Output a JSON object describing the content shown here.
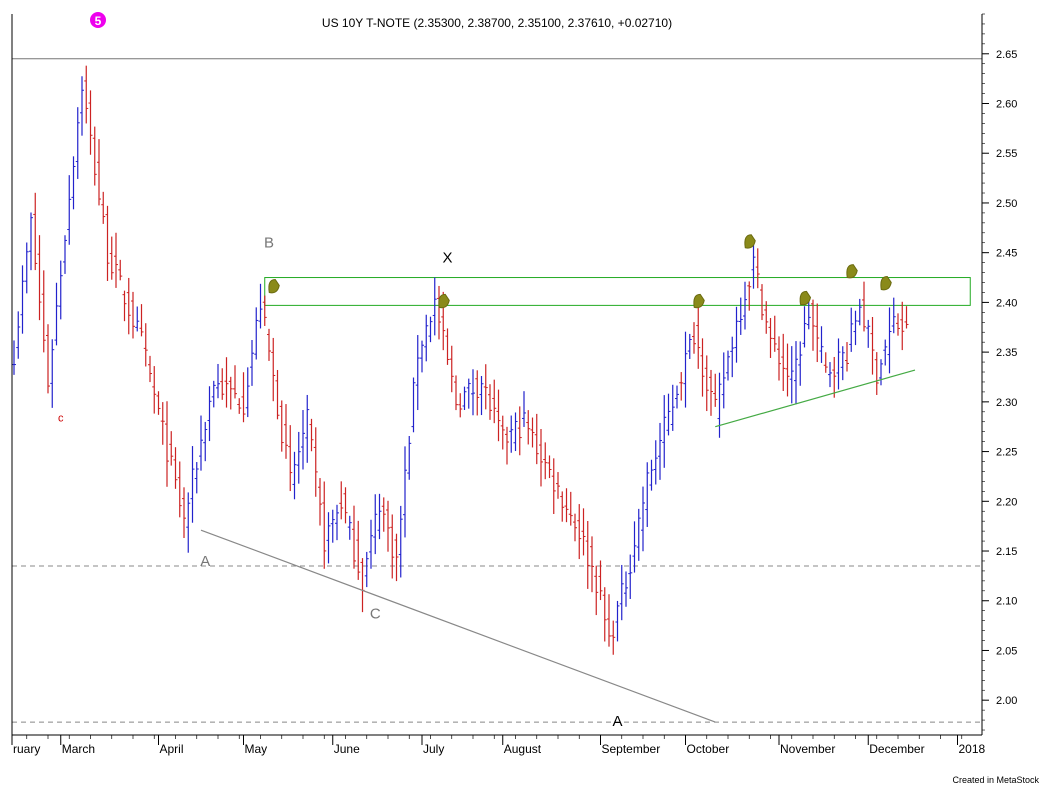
{
  "chart_data": {
    "type": "ohlc",
    "title": "US 10Y T-NOTE (2.35300, 2.38700, 2.35100, 2.37610, +0.02710)",
    "badge": "5",
    "ylim": [
      1.965,
      2.69
    ],
    "y_ticks": [
      2.0,
      2.05,
      2.1,
      2.15,
      2.2,
      2.25,
      2.3,
      2.35,
      2.4,
      2.45,
      2.5,
      2.55,
      2.6,
      2.65
    ],
    "x_labels": [
      {
        "label": "ruary",
        "t": -9
      },
      {
        "label": "March",
        "t": 11
      },
      {
        "label": "April",
        "t": 34
      },
      {
        "label": "May",
        "t": 54
      },
      {
        "label": "June",
        "t": 75
      },
      {
        "label": "July",
        "t": 96
      },
      {
        "label": "August",
        "t": 115
      },
      {
        "label": "September",
        "t": 138
      },
      {
        "label": "October",
        "t": 158
      },
      {
        "label": "November",
        "t": 180
      },
      {
        "label": "December",
        "t": 201
      },
      {
        "label": "2018",
        "t": 222
      }
    ],
    "anchors": [
      {
        "t": 0,
        "price": 2.35
      },
      {
        "t": 4,
        "price": 2.48
      },
      {
        "t": 8,
        "price": 2.32
      },
      {
        "t": 16,
        "price": 2.62
      },
      {
        "t": 22,
        "price": 2.45
      },
      {
        "t": 30,
        "price": 2.36
      },
      {
        "t": 40,
        "price": 2.18
      },
      {
        "t": 47,
        "price": 2.32
      },
      {
        "t": 54,
        "price": 2.3
      },
      {
        "t": 58,
        "price": 2.4
      },
      {
        "t": 65,
        "price": 2.22
      },
      {
        "t": 69,
        "price": 2.28
      },
      {
        "t": 73,
        "price": 2.16
      },
      {
        "t": 77,
        "price": 2.2
      },
      {
        "t": 82,
        "price": 2.12
      },
      {
        "t": 86,
        "price": 2.2
      },
      {
        "t": 90,
        "price": 2.14
      },
      {
        "t": 95,
        "price": 2.35
      },
      {
        "t": 99,
        "price": 2.4
      },
      {
        "t": 104,
        "price": 2.3
      },
      {
        "t": 110,
        "price": 2.32
      },
      {
        "t": 115,
        "price": 2.26
      },
      {
        "t": 120,
        "price": 2.28
      },
      {
        "t": 127,
        "price": 2.22
      },
      {
        "t": 133,
        "price": 2.17
      },
      {
        "t": 137,
        "price": 2.12
      },
      {
        "t": 140,
        "price": 2.06
      },
      {
        "t": 144,
        "price": 2.12
      },
      {
        "t": 149,
        "price": 2.22
      },
      {
        "t": 155,
        "price": 2.3
      },
      {
        "t": 160,
        "price": 2.37
      },
      {
        "t": 165,
        "price": 2.29
      },
      {
        "t": 170,
        "price": 2.38
      },
      {
        "t": 174,
        "price": 2.44
      },
      {
        "t": 178,
        "price": 2.36
      },
      {
        "t": 183,
        "price": 2.32
      },
      {
        "t": 187,
        "price": 2.39
      },
      {
        "t": 191,
        "price": 2.33
      },
      {
        "t": 196,
        "price": 2.35
      },
      {
        "t": 199,
        "price": 2.4
      },
      {
        "t": 203,
        "price": 2.33
      },
      {
        "t": 207,
        "price": 2.38
      },
      {
        "t": 210,
        "price": 2.37
      }
    ],
    "levels": [
      {
        "price": 2.645,
        "style": "solid"
      },
      {
        "price": 2.135,
        "style": "dashed"
      },
      {
        "price": 1.978,
        "style": "dashed"
      }
    ],
    "box": {
      "t0": 59,
      "t1": 225,
      "top": 2.425,
      "bottom": 2.397
    },
    "trendlines": [
      {
        "t0": 44,
        "p0": 2.171,
        "t1": 165,
        "p1": 1.978,
        "color": "#888888"
      },
      {
        "t0": 165,
        "p0": 2.275,
        "t1": 212,
        "p1": 2.332,
        "color": "#44aa44"
      }
    ],
    "wave_labels": [
      {
        "text": "B",
        "t": 60,
        "price": 2.455,
        "color": "#777777"
      },
      {
        "text": "X",
        "t": 102,
        "price": 2.44,
        "color": "#000000"
      },
      {
        "text": "A",
        "t": 45,
        "price": 2.135,
        "color": "#777777"
      },
      {
        "text": "C",
        "t": 85,
        "price": 2.082,
        "color": "#777777"
      },
      {
        "text": "A",
        "t": 142,
        "price": 1.974,
        "color": "#000000"
      },
      {
        "text": "c",
        "t": 11,
        "price": 2.28,
        "color": "#cc0000"
      }
    ],
    "markers": [
      {
        "t": 61,
        "price": 2.415
      },
      {
        "t": 101,
        "price": 2.4
      },
      {
        "t": 161,
        "price": 2.4
      },
      {
        "t": 173,
        "price": 2.46
      },
      {
        "t": 186,
        "price": 2.403
      },
      {
        "t": 197,
        "price": 2.43
      },
      {
        "t": 205,
        "price": 2.418
      }
    ]
  },
  "footer": "Created in MetaStock"
}
